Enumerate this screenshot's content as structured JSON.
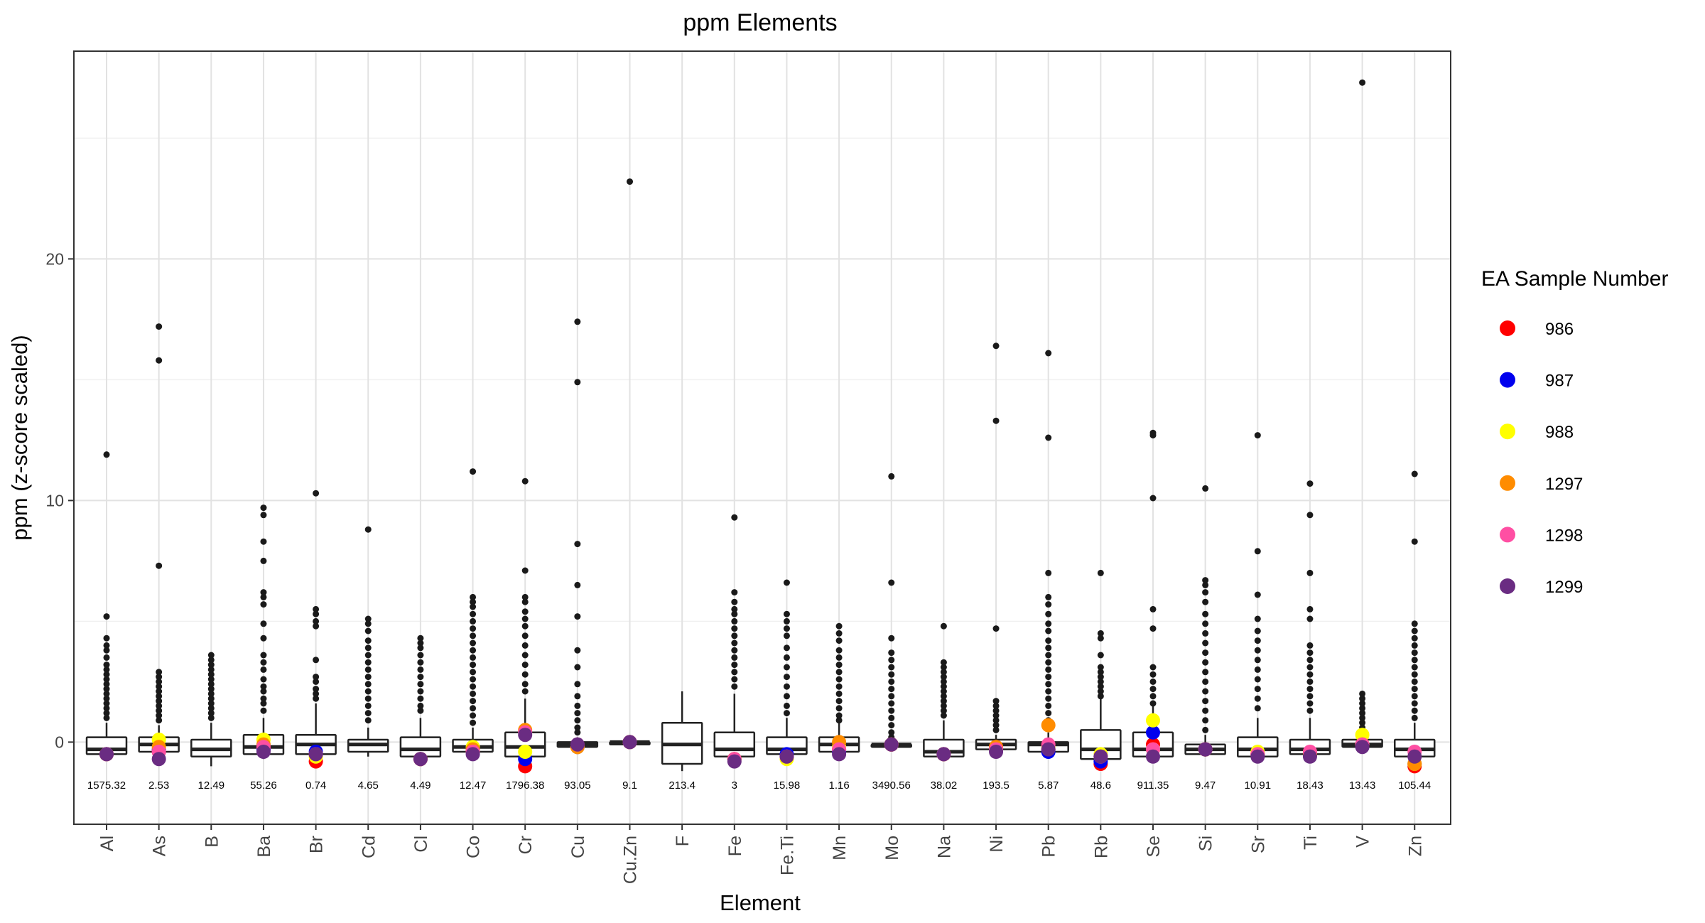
{
  "chart_data": {
    "type": "boxplot",
    "title": "ppm Elements",
    "xlabel": "Element",
    "ylabel": "ppm (z-score scaled)",
    "ylim": [
      -3.4,
      28.6
    ],
    "yticks": [
      0,
      10,
      20
    ],
    "grid": true,
    "legend": {
      "title": "EA Sample Number",
      "placement": "right",
      "entries": [
        {
          "label": "986",
          "color": "#ff0000"
        },
        {
          "label": "987",
          "color": "#0000ee"
        },
        {
          "label": "988",
          "color": "#ffff00"
        },
        {
          "label": "1297",
          "color": "#ff8c00"
        },
        {
          "label": "1298",
          "color": "#ff4fa3"
        },
        {
          "label": "1299",
          "color": "#6a2c82"
        }
      ]
    },
    "elements": [
      {
        "name": "Al",
        "box": {
          "low": -0.6,
          "q1": -0.5,
          "median": -0.3,
          "q3": 0.2,
          "high": 0.8
        },
        "outliers": [
          11.9,
          5.2,
          4.3,
          4.0,
          3.8,
          3.5,
          3.2,
          3.0,
          2.8,
          2.6,
          2.4,
          2.2,
          2.0,
          1.8,
          1.6,
          1.4,
          1.2,
          1.0
        ],
        "annotation": "1575.32",
        "samples": {
          "986": -0.5,
          "987": -0.5,
          "988": -0.5,
          "1297": -0.5,
          "1298": -0.5,
          "1299": -0.5
        }
      },
      {
        "name": "As",
        "box": {
          "low": -0.8,
          "q1": -0.4,
          "median": -0.1,
          "q3": 0.2,
          "high": 0.7
        },
        "outliers": [
          17.2,
          15.8,
          7.3,
          2.9,
          2.7,
          2.5,
          2.3,
          2.1,
          1.9,
          1.7,
          1.5,
          1.3,
          1.1,
          0.9
        ],
        "annotation": "2.53",
        "samples": {
          "986": -0.4,
          "987": -0.3,
          "988": 0.1,
          "1297": -0.2,
          "1298": -0.4,
          "1299": -0.7
        }
      },
      {
        "name": "B",
        "box": {
          "low": -1.0,
          "q1": -0.6,
          "median": -0.3,
          "q3": 0.1,
          "high": 0.8
        },
        "outliers": [
          3.6,
          3.4,
          3.2,
          3.0,
          2.8,
          2.6,
          2.4,
          2.2,
          2.0,
          1.8,
          1.6,
          1.4,
          1.2,
          1.0
        ],
        "annotation": "12.49",
        "samples": {}
      },
      {
        "name": "Ba",
        "box": {
          "low": -0.7,
          "q1": -0.5,
          "median": -0.2,
          "q3": 0.3,
          "high": 1.0
        },
        "outliers": [
          9.7,
          9.4,
          8.3,
          7.5,
          6.2,
          6.0,
          5.7,
          4.9,
          4.3,
          3.6,
          3.3,
          3.0,
          2.6,
          2.3,
          2.1,
          1.8,
          1.6,
          1.3
        ],
        "annotation": "55.26",
        "samples": {
          "986": -0.3,
          "987": -0.3,
          "988": 0.1,
          "1297": -0.1,
          "1298": -0.2,
          "1299": -0.4
        }
      },
      {
        "name": "Br",
        "box": {
          "low": -0.8,
          "q1": -0.5,
          "median": -0.1,
          "q3": 0.3,
          "high": 1.6
        },
        "outliers": [
          10.3,
          5.5,
          5.3,
          5.0,
          4.8,
          3.4,
          2.7,
          2.5,
          2.2,
          2.0,
          1.8
        ],
        "annotation": "0.74",
        "samples": {
          "986": -0.8,
          "987": -0.4,
          "988": -0.6,
          "1297": -0.5,
          "1298": -0.5,
          "1299": -0.5
        }
      },
      {
        "name": "Cd",
        "box": {
          "low": -0.6,
          "q1": -0.4,
          "median": -0.1,
          "q3": 0.1,
          "high": 0.6
        },
        "outliers": [
          8.8,
          5.1,
          4.9,
          4.6,
          4.2,
          3.9,
          3.6,
          3.3,
          3.0,
          2.7,
          2.4,
          2.1,
          1.8,
          1.5,
          1.2,
          0.9
        ],
        "annotation": "4.65",
        "samples": {}
      },
      {
        "name": "Cl",
        "box": {
          "low": -0.8,
          "q1": -0.6,
          "median": -0.3,
          "q3": 0.2,
          "high": 1.0
        },
        "outliers": [
          4.3,
          4.1,
          3.9,
          3.6,
          3.3,
          3.0,
          2.7,
          2.4,
          2.1,
          1.8,
          1.5,
          1.3
        ],
        "annotation": "4.49",
        "samples": {
          "986": -0.7,
          "987": -0.7,
          "988": -0.7,
          "1297": -0.7,
          "1298": -0.7,
          "1299": -0.7
        }
      },
      {
        "name": "Co",
        "box": {
          "low": -0.6,
          "q1": -0.4,
          "median": -0.2,
          "q3": 0.1,
          "high": 0.6
        },
        "outliers": [
          11.2,
          6.0,
          5.8,
          5.6,
          5.3,
          5.0,
          4.7,
          4.4,
          4.1,
          3.8,
          3.5,
          3.2,
          2.9,
          2.6,
          2.3,
          2.0,
          1.7,
          1.4,
          1.1,
          0.8
        ],
        "annotation": "12.47",
        "samples": {
          "986": -0.3,
          "987": -0.3,
          "988": -0.2,
          "1297": -0.3,
          "1298": -0.4,
          "1299": -0.5
        }
      },
      {
        "name": "Cr",
        "box": {
          "low": -1.0,
          "q1": -0.6,
          "median": -0.2,
          "q3": 0.4,
          "high": 1.8
        },
        "outliers": [
          10.8,
          7.1,
          6.0,
          5.8,
          5.4,
          5.1,
          4.8,
          4.4,
          4.0,
          3.6,
          3.2,
          2.8,
          2.4,
          2.1
        ],
        "annotation": "1796.38",
        "samples": {
          "986": -1.0,
          "987": -0.7,
          "988": -0.4,
          "1297": 0.5,
          "1298": 0.4,
          "1299": 0.3
        }
      },
      {
        "name": "Cu",
        "box": {
          "low": -0.4,
          "q1": -0.2,
          "median": -0.1,
          "q3": 0.0,
          "high": 0.2
        },
        "outliers": [
          17.4,
          14.9,
          8.2,
          6.5,
          5.2,
          3.8,
          3.1,
          2.4,
          1.9,
          1.5,
          1.2,
          0.9,
          0.6,
          0.4
        ],
        "annotation": "93.05",
        "samples": {
          "986": -0.2,
          "987": -0.2,
          "988": -0.2,
          "1297": -0.2,
          "1298": -0.1,
          "1299": -0.1
        }
      },
      {
        "name": "Cu.Zn",
        "box": {
          "low": -0.2,
          "q1": -0.1,
          "median": 0.0,
          "q3": 0.0,
          "high": 0.1
        },
        "outliers": [
          23.2
        ],
        "annotation": "9.1",
        "samples": {
          "986": 0.0,
          "987": 0.0,
          "988": 0.0,
          "1297": 0.0,
          "1298": 0.0,
          "1299": 0.0
        }
      },
      {
        "name": "F",
        "box": {
          "low": -1.2,
          "q1": -0.9,
          "median": -0.1,
          "q3": 0.8,
          "high": 2.1
        },
        "outliers": [],
        "annotation": "213.4",
        "samples": {}
      },
      {
        "name": "Fe",
        "box": {
          "low": -0.8,
          "q1": -0.6,
          "median": -0.3,
          "q3": 0.4,
          "high": 2.0
        },
        "outliers": [
          9.3,
          6.2,
          5.8,
          5.5,
          5.3,
          5.0,
          4.7,
          4.4,
          4.1,
          3.8,
          3.5,
          3.2,
          2.9,
          2.6,
          2.3
        ],
        "annotation": "3",
        "samples": {
          "986": -0.7,
          "987": -0.7,
          "988": -0.7,
          "1297": -0.7,
          "1298": -0.7,
          "1299": -0.8
        }
      },
      {
        "name": "Fe.Ti",
        "box": {
          "low": -0.6,
          "q1": -0.5,
          "median": -0.3,
          "q3": 0.2,
          "high": 1.0
        },
        "outliers": [
          6.6,
          5.3,
          5.0,
          4.7,
          4.4,
          3.9,
          3.5,
          3.1,
          2.7,
          2.3,
          1.9,
          1.5,
          1.2
        ],
        "annotation": "15.98",
        "samples": {
          "986": -0.6,
          "987": -0.5,
          "988": -0.7,
          "1297": -0.6,
          "1298": -0.6,
          "1299": -0.6
        }
      },
      {
        "name": "Mn",
        "box": {
          "low": -0.6,
          "q1": -0.4,
          "median": -0.1,
          "q3": 0.2,
          "high": 0.8
        },
        "outliers": [
          4.8,
          4.5,
          4.2,
          3.8,
          3.5,
          3.2,
          2.9,
          2.6,
          2.3,
          2.0,
          1.7,
          1.4,
          1.1,
          0.9
        ],
        "annotation": "1.16",
        "samples": {
          "986": -0.3,
          "987": -0.4,
          "988": -0.2,
          "1297": 0.0,
          "1298": -0.3,
          "1299": -0.5
        }
      },
      {
        "name": "Mo",
        "box": {
          "low": -0.3,
          "q1": -0.2,
          "median": -0.1,
          "q3": -0.1,
          "high": 0.1
        },
        "outliers": [
          11.0,
          6.6,
          4.3,
          3.7,
          3.4,
          3.1,
          2.8,
          2.5,
          2.2,
          1.9,
          1.6,
          1.3,
          1.0,
          0.7,
          0.4,
          0.2
        ],
        "annotation": "3490.56",
        "samples": {
          "986": -0.1,
          "987": -0.1,
          "988": -0.1,
          "1297": -0.1,
          "1298": -0.1,
          "1299": -0.1
        }
      },
      {
        "name": "Na",
        "box": {
          "low": -0.8,
          "q1": -0.6,
          "median": -0.4,
          "q3": 0.1,
          "high": 0.9
        },
        "outliers": [
          4.8,
          3.3,
          3.1,
          2.9,
          2.7,
          2.5,
          2.3,
          2.1,
          1.9,
          1.7,
          1.5,
          1.3,
          1.1
        ],
        "annotation": "38.02",
        "samples": {
          "986": -0.5,
          "987": -0.5,
          "988": -0.5,
          "1297": -0.5,
          "1298": -0.5,
          "1299": -0.5
        }
      },
      {
        "name": "Ni",
        "box": {
          "low": -0.4,
          "q1": -0.3,
          "median": -0.1,
          "q3": 0.1,
          "high": 0.3
        },
        "outliers": [
          16.4,
          13.3,
          4.7,
          1.7,
          1.5,
          1.3,
          1.1,
          0.9,
          0.7,
          0.5
        ],
        "annotation": "193.5",
        "samples": {
          "986": -0.2,
          "987": -0.3,
          "988": -0.3,
          "1297": -0.2,
          "1298": -0.3,
          "1299": -0.4
        }
      },
      {
        "name": "Pb",
        "box": {
          "low": -0.5,
          "q1": -0.4,
          "median": -0.1,
          "q3": 0.0,
          "high": 0.4
        },
        "outliers": [
          16.1,
          12.6,
          7.0,
          6.0,
          5.7,
          5.3,
          4.9,
          4.6,
          4.2,
          3.9,
          3.6,
          3.3,
          3.0,
          2.7,
          2.4,
          2.1,
          1.8,
          1.5,
          1.2,
          0.9,
          0.6
        ],
        "annotation": "5.87",
        "samples": {
          "986": -0.3,
          "987": -0.4,
          "988": -0.2,
          "1297": 0.7,
          "1298": -0.1,
          "1299": -0.3
        }
      },
      {
        "name": "Rb",
        "box": {
          "low": -0.9,
          "q1": -0.7,
          "median": -0.3,
          "q3": 0.5,
          "high": 1.8
        },
        "outliers": [
          7.0,
          4.5,
          4.3,
          3.6,
          3.1,
          2.9,
          2.7,
          2.5,
          2.3,
          2.1,
          1.9
        ],
        "annotation": "48.6",
        "samples": {
          "986": -0.9,
          "987": -0.8,
          "988": -0.5,
          "1297": -0.6,
          "1298": -0.6,
          "1299": -0.6
        }
      },
      {
        "name": "Se",
        "box": {
          "low": -0.8,
          "q1": -0.6,
          "median": -0.3,
          "q3": 0.4,
          "high": 1.5
        },
        "outliers": [
          12.8,
          12.7,
          10.1,
          5.5,
          4.7,
          3.1,
          2.8,
          2.5,
          2.2,
          1.9,
          1.6
        ],
        "annotation": "911.35",
        "samples": {
          "986": -0.1,
          "987": 0.4,
          "988": 0.9,
          "1297": -0.3,
          "1298": -0.3,
          "1299": -0.6
        }
      },
      {
        "name": "Si",
        "box": {
          "low": -0.6,
          "q1": -0.5,
          "median": -0.3,
          "q3": -0.1,
          "high": 0.3
        },
        "outliers": [
          10.5,
          6.7,
          6.5,
          6.2,
          5.8,
          5.3,
          4.9,
          4.5,
          4.1,
          3.7,
          3.3,
          2.9,
          2.5,
          2.1,
          1.7,
          1.3,
          0.9,
          0.5
        ],
        "annotation": "9.47",
        "samples": {
          "986": -0.3,
          "987": -0.3,
          "988": -0.3,
          "1297": -0.3,
          "1298": -0.3,
          "1299": -0.3
        }
      },
      {
        "name": "Sr",
        "box": {
          "low": -0.8,
          "q1": -0.6,
          "median": -0.3,
          "q3": 0.2,
          "high": 1.0
        },
        "outliers": [
          12.7,
          7.9,
          6.1,
          5.1,
          4.6,
          4.2,
          3.8,
          3.4,
          3.0,
          2.6,
          2.2,
          1.8,
          1.4
        ],
        "annotation": "10.91",
        "samples": {
          "986": -0.5,
          "987": -0.5,
          "988": -0.4,
          "1297": -0.5,
          "1298": -0.5,
          "1299": -0.6
        }
      },
      {
        "name": "Ti",
        "box": {
          "low": -0.8,
          "q1": -0.5,
          "median": -0.3,
          "q3": 0.1,
          "high": 1.0
        },
        "outliers": [
          10.7,
          9.4,
          7.0,
          5.5,
          5.1,
          4.0,
          3.7,
          3.4,
          3.1,
          2.8,
          2.5,
          2.2,
          1.9,
          1.6,
          1.3
        ],
        "annotation": "18.43",
        "samples": {
          "986": -0.5,
          "987": -0.5,
          "988": -0.5,
          "1297": -0.5,
          "1298": -0.4,
          "1299": -0.6
        }
      },
      {
        "name": "V",
        "box": {
          "low": -0.4,
          "q1": -0.2,
          "median": -0.1,
          "q3": 0.1,
          "high": 0.4
        },
        "outliers": [
          27.3,
          2.0,
          1.8,
          1.6,
          1.4,
          1.2,
          1.0,
          0.8,
          0.6
        ],
        "annotation": "13.43",
        "samples": {
          "986": -0.1,
          "987": -0.1,
          "988": 0.3,
          "1297": -0.1,
          "1298": -0.1,
          "1299": -0.2
        }
      },
      {
        "name": "Zn",
        "box": {
          "low": -1.0,
          "q1": -0.6,
          "median": -0.3,
          "q3": 0.1,
          "high": 0.8
        },
        "outliers": [
          11.1,
          8.3,
          4.9,
          4.6,
          4.3,
          4.0,
          3.7,
          3.4,
          3.1,
          2.8,
          2.5,
          2.2,
          1.9,
          1.6,
          1.3,
          1.0
        ],
        "annotation": "105.44",
        "samples": {
          "986": -1.0,
          "987": -0.9,
          "988": -0.9,
          "1297": -0.9,
          "1298": -0.4,
          "1299": -0.6
        }
      }
    ]
  }
}
